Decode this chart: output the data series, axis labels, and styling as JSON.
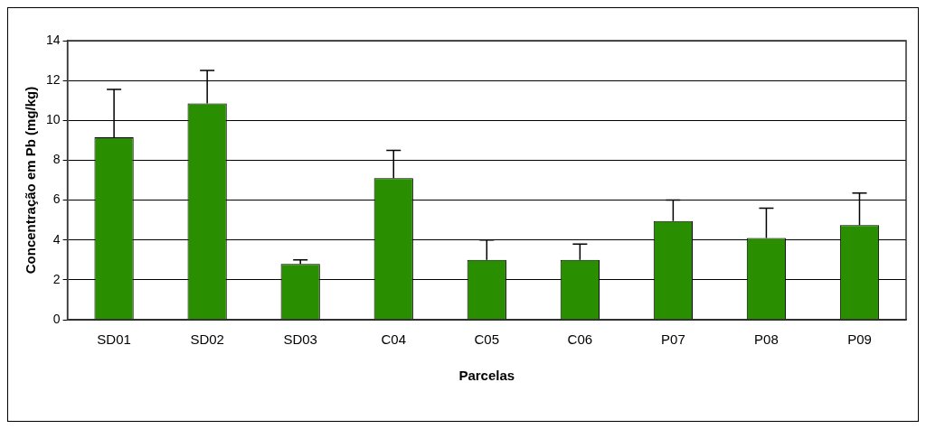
{
  "chart_data": {
    "type": "bar",
    "xlabel": "Parcelas",
    "ylabel": "Concentração em Pb (mg/kg)",
    "categories": [
      "SD01",
      "SD02",
      "SD03",
      "C04",
      "C05",
      "C06",
      "P07",
      "P08",
      "P09"
    ],
    "values": [
      9.15,
      10.85,
      2.8,
      7.1,
      3.0,
      3.0,
      4.95,
      4.1,
      4.75
    ],
    "errors": [
      [
        9.15,
        11.55
      ],
      [
        10.85,
        12.5
      ],
      [
        2.8,
        3.0
      ],
      [
        7.1,
        8.5
      ],
      [
        3.0,
        4.0
      ],
      [
        3.0,
        3.8
      ],
      [
        4.95,
        6.0
      ],
      [
        4.1,
        5.6
      ],
      [
        4.75,
        6.35
      ]
    ],
    "color": "#2a8f00",
    "ylim": [
      0,
      14
    ],
    "yticks": [
      0,
      2,
      4,
      6,
      8,
      10,
      12,
      14
    ],
    "grid": "y",
    "legend": false
  }
}
